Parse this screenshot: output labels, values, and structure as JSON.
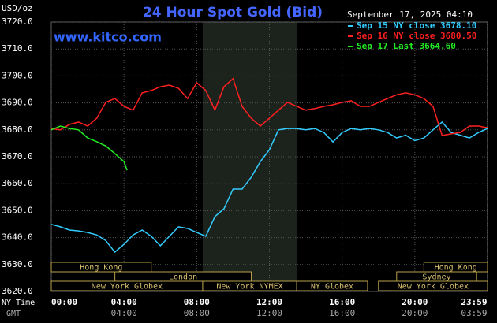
{
  "chart_data": {
    "type": "line",
    "title": "24 Hour Spot Gold (Bid)",
    "unit_label": "USD/oz",
    "watermark": "www.kitco.com",
    "timestamp": "September 17, 2025 04:10",
    "x_axis_label": "NY Time",
    "x2_axis_label": "GMT",
    "xlim": [
      0,
      24
    ],
    "xticks": [
      {
        "value": 0,
        "label": "00:00"
      },
      {
        "value": 4,
        "label": "04:00"
      },
      {
        "value": 8,
        "label": "08:00"
      },
      {
        "value": 12,
        "label": "12:00"
      },
      {
        "value": 16,
        "label": "16:00"
      },
      {
        "value": 20,
        "label": "20:00"
      },
      {
        "value": 23.98,
        "label": "23:59"
      }
    ],
    "x2ticks": [
      "04:00",
      "08:00",
      "12:00",
      "16:00",
      "20:00",
      "03:59"
    ],
    "ylim": [
      3620,
      3720
    ],
    "yticks": [
      {
        "value": 3620,
        "label": "3620.0"
      },
      {
        "value": 3630,
        "label": "3630.0"
      },
      {
        "value": 3640,
        "label": "3640.0"
      },
      {
        "value": 3650,
        "label": "3650.0"
      },
      {
        "value": 3660,
        "label": "3660.0"
      },
      {
        "value": 3670,
        "label": "3670.0"
      },
      {
        "value": 3680,
        "label": "3680.0"
      },
      {
        "value": 3690,
        "label": "3690.0"
      },
      {
        "value": 3700,
        "label": "3700.0"
      },
      {
        "value": 3710,
        "label": "3710.0"
      },
      {
        "value": 3720,
        "label": "3720.0"
      }
    ],
    "grid": true,
    "highlight_span": [
      8.33,
      13.5
    ],
    "sessions": [
      {
        "label": "Hong Kong",
        "start": 0,
        "end": 5.5
      },
      {
        "label": "Hong Kong",
        "start": 20.5,
        "end": 24
      },
      {
        "label": "London",
        "start": 3.5,
        "end": 11
      },
      {
        "label": "Sydney",
        "start": 19,
        "end": 23.4
      },
      {
        "label": "New York Globex",
        "start": 0,
        "end": 8.33
      },
      {
        "label": "New York NYMEX",
        "start": 8.33,
        "end": 13.5
      },
      {
        "label": "NY Globex",
        "start": 13.5,
        "end": 17.4
      },
      {
        "label": "New York Globex",
        "start": 18,
        "end": 24
      }
    ],
    "series": [
      {
        "name": "Sep 15 NY close 3678.10",
        "color": "#33ccff",
        "x": [
          0,
          0.5,
          1,
          1.5,
          2,
          2.5,
          3,
          3.5,
          4,
          4.5,
          5,
          5.5,
          6,
          6.5,
          7,
          7.5,
          8,
          8.5,
          9,
          9.5,
          10,
          10.5,
          11,
          11.5,
          12,
          12.5,
          13,
          13.5,
          14,
          14.5,
          15,
          15.5,
          16,
          16.5,
          17,
          17.5,
          18,
          18.5,
          19,
          19.5,
          20,
          20.5,
          21,
          21.5,
          22,
          22.5,
          23,
          23.5,
          24
        ],
        "values": [
          3644.9,
          3644,
          3642.8,
          3642.5,
          3641.9,
          3641,
          3638.9,
          3634.6,
          3637.5,
          3641,
          3642.8,
          3640.5,
          3637,
          3640.5,
          3644,
          3643.4,
          3641.9,
          3640.5,
          3647.8,
          3650.7,
          3658,
          3658,
          3662.4,
          3668.2,
          3672.6,
          3680,
          3680.5,
          3680.5,
          3680,
          3680.5,
          3679,
          3675.5,
          3679,
          3680.5,
          3680,
          3680.5,
          3680,
          3679,
          3677,
          3678,
          3676,
          3677,
          3680,
          3682.9,
          3679,
          3678,
          3677,
          3679,
          3680.5
        ]
      },
      {
        "name": "Sep 16 NY close 3680.50",
        "color": "#ff2020",
        "x": [
          0,
          0.5,
          1,
          1.5,
          2,
          2.5,
          3,
          3.5,
          4,
          4.5,
          5,
          5.5,
          6,
          6.5,
          7,
          7.5,
          8,
          8.5,
          9,
          9.5,
          10,
          10.5,
          11,
          11.5,
          12,
          12.5,
          13,
          13.5,
          14,
          14.5,
          15,
          15.5,
          16,
          16.5,
          17,
          17.5,
          18,
          18.5,
          19,
          19.5,
          20,
          20.5,
          21,
          21.5,
          22,
          22.5,
          23,
          23.5,
          24
        ],
        "values": [
          3680.5,
          3680,
          3682,
          3682.9,
          3681.4,
          3684.3,
          3690.2,
          3691.6,
          3688.7,
          3687.3,
          3693.7,
          3694.6,
          3696,
          3696.6,
          3695.4,
          3691.6,
          3697.5,
          3694.6,
          3687.3,
          3696,
          3699,
          3688.7,
          3684.3,
          3681.4,
          3684.3,
          3687.3,
          3690.2,
          3688.7,
          3687.3,
          3687.9,
          3688.7,
          3689.3,
          3690.2,
          3690.8,
          3688.7,
          3688.7,
          3690.2,
          3691.6,
          3693,
          3693.7,
          3693,
          3691.6,
          3688.7,
          3677.9,
          3678.5,
          3679,
          3681.4,
          3681.4,
          3680.8
        ]
      },
      {
        "name": "Sep 17 Last 3664.60",
        "color": "#22ee22",
        "x": [
          0,
          0.5,
          1,
          1.5,
          2,
          2.5,
          3,
          3.5,
          4,
          4.17
        ],
        "values": [
          3680,
          3681.4,
          3680.5,
          3680,
          3677,
          3675.6,
          3674,
          3671.2,
          3668.2,
          3665
        ]
      }
    ]
  }
}
